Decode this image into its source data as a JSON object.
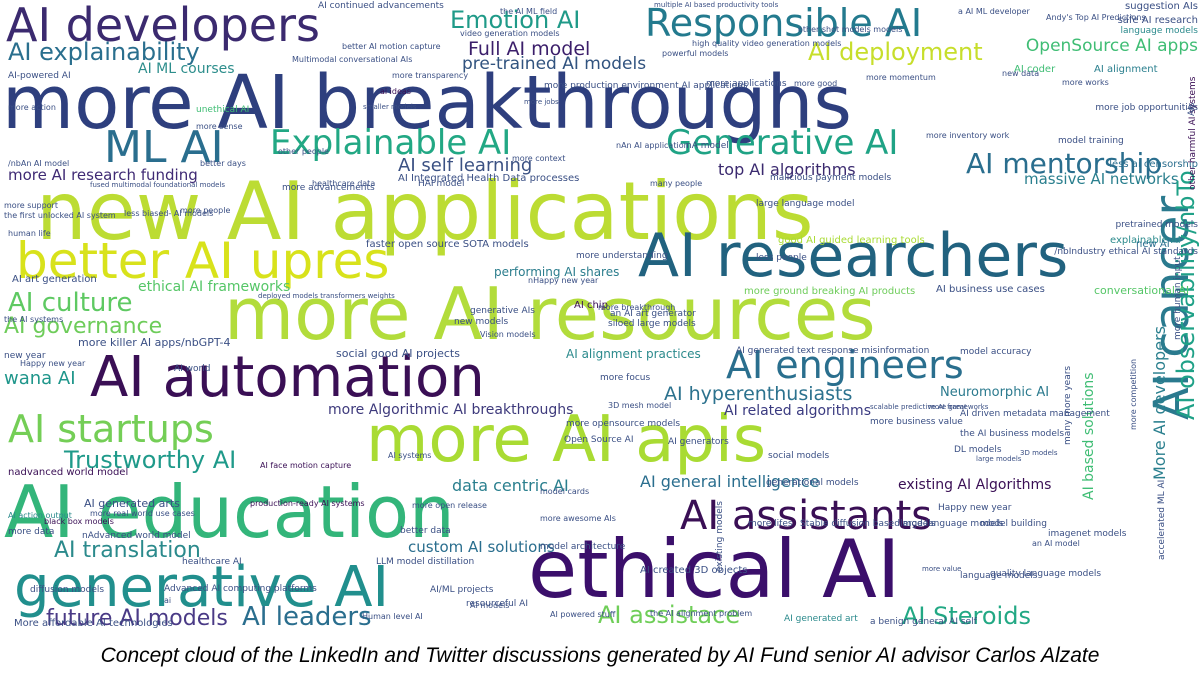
{
  "words": [
    {
      "text": "AI developers",
      "color": "#3b2a6f"
    },
    {
      "text": "Emotion AI",
      "color": "#1f9a88"
    },
    {
      "text": "Responsible AI",
      "color": "#237a8e"
    },
    {
      "text": "AI explainability",
      "color": "#2a6f8e"
    },
    {
      "text": "Full AI model",
      "color": "#3b1e6a"
    },
    {
      "text": "AI deployment",
      "color": "#c7de2b"
    },
    {
      "text": "OpenSource AI apps",
      "color": "#3fbd74"
    },
    {
      "text": "pre-trained AI models",
      "color": "#31537f"
    },
    {
      "text": "AI ML courses",
      "color": "#2d8e8c"
    },
    {
      "text": "more AI breakthroughs",
      "color": "#2e3f7e"
    },
    {
      "text": "ML AI",
      "color": "#2a6e8e"
    },
    {
      "text": "Explainable AI",
      "color": "#22a884"
    },
    {
      "text": "Generative AI",
      "color": "#1fa385"
    },
    {
      "text": "AI mentorship",
      "color": "#2a6e8e"
    },
    {
      "text": "AI self learning",
      "color": "#3b5183"
    },
    {
      "text": "top AI algorithms",
      "color": "#3b2a6f"
    },
    {
      "text": "more AI research funding",
      "color": "#3f2a74"
    },
    {
      "text": "massive AI networks",
      "color": "#2a7f8e"
    },
    {
      "text": "new AI applications",
      "color": "#bcdc33"
    },
    {
      "text": "better AI upres",
      "color": "#d8e21b"
    },
    {
      "text": "AI researchers",
      "color": "#21627f"
    },
    {
      "text": "AI culture",
      "color": "#5ec962"
    },
    {
      "text": "ethical AI frameworks",
      "color": "#55c667"
    },
    {
      "text": "performing AI shares",
      "color": "#2b7d8d"
    },
    {
      "text": "AI governance",
      "color": "#6ecc5a"
    },
    {
      "text": "more AI resources",
      "color": "#b2dc3b"
    },
    {
      "text": "generative AIs",
      "color": "#3a4f84"
    },
    {
      "text": "wana AI",
      "color": "#1f968b"
    },
    {
      "text": "AI automation",
      "color": "#3a0f55"
    },
    {
      "text": "AI engineers",
      "color": "#2a6f8e"
    },
    {
      "text": "AI hyperenthusiasts",
      "color": "#2c728e"
    },
    {
      "text": "more Algorithmic AI breakthroughs",
      "color": "#3e3a7c"
    },
    {
      "text": "AI startups",
      "color": "#74ce56"
    },
    {
      "text": "more AI apis",
      "color": "#a9db33"
    },
    {
      "text": "Trustworthy AI",
      "color": "#1f9a8a"
    },
    {
      "text": "AI education",
      "color": "#33b57a"
    },
    {
      "text": "AI cancer",
      "color": "#2a7a8e"
    },
    {
      "text": "AI assistants",
      "color": "#3a0f55"
    },
    {
      "text": "AI translation",
      "color": "#2b8a8c"
    },
    {
      "text": "generative AI",
      "color": "#218f8d"
    },
    {
      "text": "ethical AI",
      "color": "#3b0f6b"
    },
    {
      "text": "future AI models",
      "color": "#4a3a86"
    },
    {
      "text": "AI leaders",
      "color": "#2a6e8e"
    },
    {
      "text": "AI assistace",
      "color": "#6fce58"
    },
    {
      "text": "AI Steroids",
      "color": "#22a884"
    },
    {
      "text": "data centric AI",
      "color": "#2a7f8e"
    },
    {
      "text": "existing AI Algorithms",
      "color": "#3a0f55"
    },
    {
      "text": "AI general intelligence",
      "color": "#2a6e8e"
    },
    {
      "text": "AI observability/nbTo",
      "color": "#1fa187"
    },
    {
      "text": "custom AI solutions",
      "color": "#2a6e8e"
    },
    {
      "text": "AI related algorithms",
      "color": "#3a3a80"
    },
    {
      "text": "Neuromorphic AI",
      "color": "#2b7a8e"
    },
    {
      "text": "social good AI projects",
      "color": "#3a4f84"
    },
    {
      "text": "AI alignment practices",
      "color": "#2b8a8c"
    },
    {
      "text": "AI chip",
      "color": "#3a0f55"
    },
    {
      "text": "more killer AI apps/nbGPT-4",
      "color": "#3a4f84"
    },
    {
      "text": "AI business use cases",
      "color": "#3a4f84"
    },
    {
      "text": "conversational AI",
      "color": "#55c667"
    },
    {
      "text": "AI Integrated Health Data processes",
      "color": "#3a4f84"
    },
    {
      "text": "more ground breaking AI products",
      "color": "#6ecc5a"
    },
    {
      "text": "AI generated arts",
      "color": "#3a4f84"
    },
    {
      "text": "nadvanced world model",
      "color": "#3a0f55"
    },
    {
      "text": "More affordable AI technologies",
      "color": "#3a4f84"
    },
    {
      "text": "AI created 3D objects",
      "color": "#3a4f84"
    },
    {
      "text": "More AI developers",
      "color": "#2a7f8e"
    },
    {
      "text": "AI based solutions",
      "color": "#3fbd74"
    },
    {
      "text": "AI art generation",
      "color": "#3a4f84"
    },
    {
      "text": "faster open source SOTA models",
      "color": "#3a4f84"
    },
    {
      "text": "good AI guided learning tools",
      "color": "#a9db33"
    },
    {
      "text": "explainable AI",
      "color": "#2b8a8c"
    },
    {
      "text": "new AI",
      "color": "#2a6e8e"
    },
    {
      "text": "less ai censorship",
      "color": "#2a6e8e"
    },
    {
      "text": "other harmful AI systems",
      "color": "#3a0f55"
    },
    {
      "text": "AI coder",
      "color": "#3fbd74"
    },
    {
      "text": "AI alignment",
      "color": "#2a7f8e"
    },
    {
      "text": "suggestion AIs",
      "color": "#3a4f84"
    },
    {
      "text": "safe AI research",
      "color": "#3a4f84"
    },
    {
      "text": "language models",
      "color": "#2b8a8c"
    },
    {
      "text": "AI continued advancements",
      "color": "#3a4f84"
    },
    {
      "text": "multiple AI based productivity tools",
      "color": "#3a4f84"
    },
    {
      "text": "better AI motion capture",
      "color": "#3a4f84"
    },
    {
      "text": "Multimodal conversational AIs",
      "color": "#3a4f84"
    },
    {
      "text": "ai ideas",
      "color": "#3a0f55"
    },
    {
      "text": "unethical AI",
      "color": "#3fbd74"
    },
    {
      "text": "smaller models",
      "color": "#3a4f84"
    },
    {
      "text": "more jobs",
      "color": "#3a4f84"
    },
    {
      "text": "fused multimodal foundational models",
      "color": "#3a4f84"
    },
    {
      "text": "deployed models transformers weights",
      "color": "#3a4f84"
    },
    {
      "text": "AI face motion capture",
      "color": "#3a0f55"
    },
    {
      "text": "production-ready AI systems",
      "color": "#3a0f55"
    },
    {
      "text": "more real world use cases",
      "color": "#3a4f84"
    },
    {
      "text": "black box models",
      "color": "#3a0f55"
    },
    {
      "text": "AI world",
      "color": "#3a4f84"
    },
    {
      "text": "new models",
      "color": "#3a4f84"
    },
    {
      "text": "siloed large models",
      "color": "#3a4f84"
    },
    {
      "text": "large language model",
      "color": "#3a4f84"
    },
    {
      "text": "model training",
      "color": "#3a4f84"
    },
    {
      "text": "pretrained models",
      "color": "#3a4f84"
    },
    {
      "text": "AI generated art",
      "color": "#2b8a8c"
    },
    {
      "text": "Stable diffusion based models",
      "color": "#3a4f84"
    },
    {
      "text": "healthcare AI",
      "color": "#3a4f84"
    },
    {
      "text": "malicious payment models",
      "color": "#3a4f84"
    },
    {
      "text": "model building",
      "color": "#3a4f84"
    },
    {
      "text": "imagenet models",
      "color": "#3a4f84"
    },
    {
      "text": "3D models",
      "color": "#3a4f84"
    },
    {
      "text": "large models",
      "color": "#3a4f84"
    },
    {
      "text": "many more years",
      "color": "#3a4f84"
    },
    {
      "text": "more awesome AIs",
      "color": "#3a4f84"
    },
    {
      "text": "resourceful AI",
      "color": "#3a4f84"
    },
    {
      "text": "AI powered stuff",
      "color": "#3a4f84"
    },
    {
      "text": "existing models",
      "color": "#3a4f84"
    },
    {
      "text": "generational models",
      "color": "#3a4f84"
    },
    {
      "text": "AI action output",
      "color": "#2b8a8c"
    },
    {
      "text": "Happy new year",
      "color": "#3a4f84"
    },
    {
      "text": "HAI model",
      "color": "#3a4f84"
    },
    {
      "text": "more advancements",
      "color": "#3a4f84"
    },
    {
      "text": "diffusion models",
      "color": "#3a4f84"
    },
    {
      "text": "less biased- AI models",
      "color": "#3a4f84"
    },
    {
      "text": "model architecture",
      "color": "#3a4f84"
    },
    {
      "text": "better data",
      "color": "#3a4f84"
    },
    {
      "text": "LLM model distillation",
      "color": "#3a4f84"
    },
    {
      "text": "Human level AI",
      "color": "#3a4f84"
    },
    {
      "text": "accelerated ML AI",
      "color": "#3a4f84"
    },
    {
      "text": "more lifes",
      "color": "#3a4f84"
    },
    {
      "text": "large language models",
      "color": "#3a4f84"
    },
    {
      "text": "language models",
      "color": "#3a4f84"
    },
    {
      "text": "quality language models",
      "color": "#3a4f84"
    },
    {
      "text": "new year",
      "color": "#3a4f84"
    },
    {
      "text": "the AI business models",
      "color": "#3a4f84"
    },
    {
      "text": "a benign general AI self",
      "color": "#3a4f84"
    },
    {
      "text": "AI generated text response misinformation",
      "color": "#3a4f84"
    },
    {
      "text": "model accuracy",
      "color": "#3a4f84"
    },
    {
      "text": "AI generators",
      "color": "#3a4f84"
    },
    {
      "text": "AI driven metadata management",
      "color": "#3a4f84"
    },
    {
      "text": "more business value",
      "color": "#3a4f84"
    },
    {
      "text": "Happy new year",
      "color": "#3a4f84"
    },
    {
      "text": "healthcare data",
      "color": "#3a4f84"
    },
    {
      "text": "more job opportunities",
      "color": "#3a4f84"
    },
    {
      "text": "human life",
      "color": "#3a4f84"
    },
    {
      "text": "AI-powered AI",
      "color": "#3a4f84"
    },
    {
      "text": "Vision models",
      "color": "#3a4f84"
    },
    {
      "text": "more human input",
      "color": "#3a4f84"
    },
    {
      "text": "AIs",
      "color": "#3a4f84"
    },
    {
      "text": "new data",
      "color": "#3a4f84"
    },
    {
      "text": "more data",
      "color": "#3a4f84"
    },
    {
      "text": "the first unlocked AI system",
      "color": "#3a4f84"
    },
    {
      "text": "more support",
      "color": "#3a4f84"
    },
    {
      "text": "nA model",
      "color": "#3a4f84"
    },
    {
      "text": "more people",
      "color": "#3a4f84"
    },
    {
      "text": "AI systems",
      "color": "#3a4f84"
    },
    {
      "text": "social models",
      "color": "#3a4f84"
    },
    {
      "text": "powerful models",
      "color": "#3a4f84"
    },
    {
      "text": "more applications",
      "color": "#3a4f84"
    },
    {
      "text": "more understanding",
      "color": "#3a4f84"
    },
    {
      "text": "an AI art generator",
      "color": "#3a4f84"
    },
    {
      "text": "more opensource models",
      "color": "#3a4f84"
    },
    {
      "text": "Open Source AI",
      "color": "#3a4f84"
    },
    {
      "text": "more focus",
      "color": "#3a4f84"
    },
    {
      "text": "more transparency",
      "color": "#3a4f84"
    },
    {
      "text": "more sense",
      "color": "#3a4f84"
    },
    {
      "text": "more context",
      "color": "#3a4f84"
    },
    {
      "text": "better days",
      "color": "#3a4f84"
    },
    {
      "text": "model cards",
      "color": "#3a4f84"
    },
    {
      "text": "more open release",
      "color": "#3a4f84"
    },
    {
      "text": "scalable predictive AI frameworks",
      "color": "#3a4f84"
    },
    {
      "text": "high quality video generation models",
      "color": "#3a4f84"
    },
    {
      "text": "video generation models",
      "color": "#3a4f84"
    },
    {
      "text": "more production environment AI applications",
      "color": "#3a4f84"
    },
    {
      "text": "more action",
      "color": "#3a4f84"
    },
    {
      "text": "more works",
      "color": "#3a4f84"
    },
    {
      "text": "more competition",
      "color": "#3a4f84"
    },
    {
      "text": "AI models",
      "color": "#3a4f84"
    },
    {
      "text": "more momentum",
      "color": "#3a4f84"
    },
    {
      "text": "AI/ML projects",
      "color": "#3a4f84"
    },
    {
      "text": "nAdvanced world model",
      "color": "#3a4f84"
    },
    {
      "text": "Advanced AI computing platforms",
      "color": "#3a4f84"
    },
    {
      "text": "ai",
      "color": "#3a4f84"
    },
    {
      "text": "the AI ML field",
      "color": "#3a4f84"
    },
    {
      "text": "nAn AI application",
      "color": "#3a4f84"
    },
    {
      "text": "/nbAn AI model",
      "color": "#3a4f84"
    },
    {
      "text": "many people",
      "color": "#3a4f84"
    },
    {
      "text": "less people",
      "color": "#3a4f84"
    },
    {
      "text": "/nbIndustry ethical AI standards",
      "color": "#3a4f84"
    },
    {
      "text": "nHappy new year",
      "color": "#3a4f84"
    },
    {
      "text": "Andy's Top AI Predictions",
      "color": "#3a4f84"
    },
    {
      "text": "a AI ML developer",
      "color": "#3a4f84"
    },
    {
      "text": "the AI alignment problem",
      "color": "#3a4f84"
    },
    {
      "text": "other shot models models",
      "color": "#3a4f84"
    },
    {
      "text": "3D mesh model",
      "color": "#3a4f84"
    },
    {
      "text": "more great",
      "color": "#3a4f84"
    },
    {
      "text": "more value",
      "color": "#3a4f84"
    },
    {
      "text": "DL models",
      "color": "#3a4f84"
    },
    {
      "text": "an AI model",
      "color": "#3a4f84"
    },
    {
      "text": "the AI systems",
      "color": "#3a4f84"
    },
    {
      "text": "more inventory work",
      "color": "#3a4f84"
    },
    {
      "text": "more good",
      "color": "#3a4f84"
    },
    {
      "text": "other people",
      "color": "#3a4f84"
    },
    {
      "text": "more breakthrough",
      "color": "#3a4f84"
    }
  ],
  "caption": "Concept cloud of the LinkedIn and Twitter discussions generated by AI Fund senior AI advisor Carlos Alzate"
}
